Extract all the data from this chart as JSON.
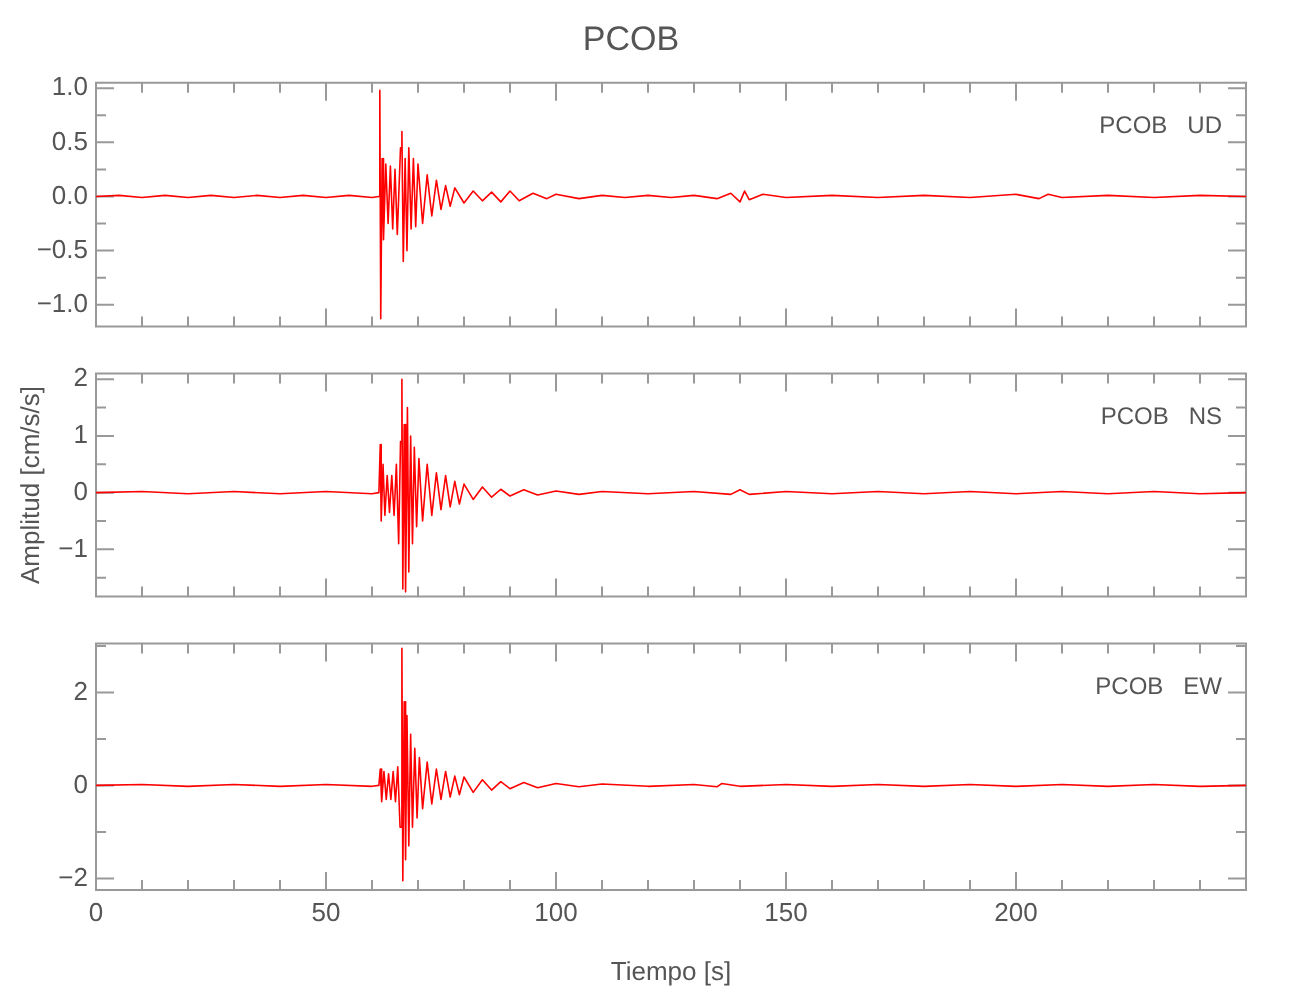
{
  "chart_data": [
    {
      "type": "line",
      "title": "PCOB",
      "annotations": [
        "PCOB   UD"
      ],
      "tick_labels": "y",
      "xlim": [
        0,
        250
      ],
      "ylim": [
        -1.2,
        1.05
      ],
      "xticks": [
        0,
        {
          "value": 10,
          "label": null
        },
        {
          "value": 20,
          "label": null
        },
        {
          "value": 30,
          "label": null
        },
        {
          "value": 40,
          "label": null
        },
        50,
        {
          "value": 60,
          "label": null
        },
        {
          "value": 70,
          "label": null
        },
        {
          "value": 80,
          "label": null
        },
        {
          "value": 90,
          "label": null
        },
        100,
        {
          "value": 110,
          "label": null
        },
        {
          "value": 120,
          "label": null
        },
        {
          "value": 130,
          "label": null
        },
        {
          "value": 140,
          "label": null
        },
        150,
        {
          "value": 160,
          "label": null
        },
        {
          "value": 170,
          "label": null
        },
        {
          "value": 180,
          "label": null
        },
        {
          "value": 190,
          "label": null
        },
        200,
        {
          "value": 210,
          "label": null
        },
        {
          "value": 220,
          "label": null
        },
        {
          "value": 230,
          "label": null
        },
        {
          "value": 240,
          "label": null
        }
      ],
      "yticks": [
        {
          "value": 1,
          "label": "1.0"
        },
        {
          "value": 0.75,
          "label": null
        },
        {
          "value": 0.5,
          "label": "0.5"
        },
        {
          "value": 0.25,
          "label": null
        },
        {
          "value": 0,
          "label": "0.0"
        },
        {
          "value": -0.25,
          "label": null
        },
        {
          "value": -0.5,
          "label": "−0.5"
        },
        {
          "value": -0.75,
          "label": null
        },
        {
          "value": -1,
          "label": "−1.0"
        }
      ],
      "series": [
        {
          "color": "#ff0000",
          "x": [
            0,
            5,
            10,
            15,
            20,
            25,
            30,
            35,
            40,
            45,
            50,
            55,
            60,
            61.5,
            61.7,
            61.9,
            62.2,
            62.5,
            63,
            63.5,
            64,
            64.5,
            65,
            65.5,
            66.2,
            66.5,
            66.8,
            67.2,
            67.6,
            68,
            68.5,
            69,
            69.5,
            70,
            71,
            72,
            73,
            74,
            75,
            76,
            77,
            78,
            80,
            82,
            84,
            86,
            88,
            90,
            92,
            95,
            98,
            100,
            105,
            110,
            115,
            120,
            125,
            130,
            135,
            138,
            140,
            141,
            142,
            145,
            150,
            160,
            170,
            180,
            190,
            200,
            205,
            207,
            210,
            220,
            230,
            240,
            250
          ],
          "values": [
            0,
            0.01,
            -0.01,
            0.01,
            -0.01,
            0.01,
            -0.01,
            0.01,
            -0.01,
            0.01,
            -0.01,
            0.01,
            -0.01,
            0,
            0.98,
            -1.13,
            0.35,
            -0.4,
            0.3,
            -0.25,
            0.28,
            -0.3,
            0.25,
            -0.35,
            0.45,
            0.6,
            -0.6,
            0.35,
            -0.5,
            0.45,
            -0.3,
            0.35,
            -0.28,
            0.3,
            -0.25,
            0.2,
            -0.18,
            0.15,
            -0.12,
            0.1,
            -0.09,
            0.08,
            -0.06,
            0.05,
            -0.04,
            0.04,
            -0.05,
            0.05,
            -0.04,
            0.03,
            -0.02,
            0.02,
            -0.02,
            0.01,
            -0.01,
            0.01,
            -0.01,
            0.01,
            -0.02,
            0.03,
            -0.05,
            0.05,
            -0.03,
            0.02,
            -0.01,
            0.01,
            -0.01,
            0.01,
            -0.01,
            0.02,
            -0.02,
            0.02,
            -0.01,
            0.01,
            -0.01,
            0.01,
            0
          ]
        }
      ]
    },
    {
      "type": "line",
      "ylabel": "Amplitud [cm/s/s]",
      "annotations": [
        "PCOB   NS"
      ],
      "tick_labels": "y",
      "xlim": [
        0,
        250
      ],
      "ylim": [
        -1.83,
        2.1
      ],
      "xticks": [
        0,
        {
          "value": 10,
          "label": null
        },
        {
          "value": 20,
          "label": null
        },
        {
          "value": 30,
          "label": null
        },
        {
          "value": 40,
          "label": null
        },
        50,
        {
          "value": 60,
          "label": null
        },
        {
          "value": 70,
          "label": null
        },
        {
          "value": 80,
          "label": null
        },
        {
          "value": 90,
          "label": null
        },
        100,
        {
          "value": 110,
          "label": null
        },
        {
          "value": 120,
          "label": null
        },
        {
          "value": 130,
          "label": null
        },
        {
          "value": 140,
          "label": null
        },
        150,
        {
          "value": 160,
          "label": null
        },
        {
          "value": 170,
          "label": null
        },
        {
          "value": 180,
          "label": null
        },
        {
          "value": 190,
          "label": null
        },
        200,
        {
          "value": 210,
          "label": null
        },
        {
          "value": 220,
          "label": null
        },
        {
          "value": 230,
          "label": null
        },
        {
          "value": 240,
          "label": null
        }
      ],
      "yticks": [
        2,
        {
          "value": 1.5,
          "label": null
        },
        1,
        {
          "value": 0.5,
          "label": null
        },
        0,
        {
          "value": -0.5,
          "label": null
        },
        {
          "value": -1,
          "label": "−1"
        },
        {
          "value": -1.5,
          "label": null
        }
      ],
      "series": [
        {
          "color": "#ff0000",
          "x": [
            0,
            10,
            20,
            30,
            40,
            50,
            60,
            61.5,
            61.8,
            62,
            62.4,
            62.8,
            63.3,
            63.8,
            64.3,
            64.8,
            65.3,
            65.8,
            66.2,
            66.5,
            66.7,
            67,
            67.3,
            67.7,
            68,
            68.4,
            68.8,
            69.2,
            69.7,
            70.2,
            71,
            72,
            73,
            74,
            75,
            76,
            77,
            78,
            79,
            80,
            82,
            84,
            86,
            88,
            90,
            93,
            96,
            100,
            105,
            110,
            120,
            130,
            138,
            140,
            142,
            150,
            160,
            170,
            180,
            190,
            200,
            210,
            220,
            230,
            240,
            250
          ],
          "values": [
            0,
            0.02,
            -0.02,
            0.02,
            -0.02,
            0.02,
            -0.02,
            0,
            0.85,
            -0.5,
            0.5,
            -0.4,
            0.3,
            -0.35,
            0.3,
            -0.4,
            0.5,
            -0.9,
            0.9,
            2.0,
            -1.7,
            1.2,
            -1.75,
            1.5,
            -1.4,
            1.0,
            -0.9,
            0.8,
            -0.6,
            0.6,
            -0.5,
            0.5,
            -0.4,
            0.35,
            -0.3,
            0.3,
            -0.25,
            0.2,
            -0.2,
            0.15,
            -0.12,
            0.1,
            -0.08,
            0.06,
            -0.06,
            0.05,
            -0.04,
            0.03,
            -0.03,
            0.02,
            -0.02,
            0.02,
            -0.03,
            0.05,
            -0.03,
            0.02,
            -0.02,
            0.02,
            -0.02,
            0.02,
            -0.02,
            0.02,
            -0.02,
            0.02,
            -0.02,
            0
          ]
        }
      ]
    },
    {
      "type": "line",
      "xlabel": "Tiempo [s]",
      "annotations": [
        "PCOB   EW"
      ],
      "xlim": [
        0,
        250
      ],
      "ylim": [
        -2.25,
        3.05
      ],
      "xticks": [
        0,
        {
          "value": 10,
          "label": null
        },
        {
          "value": 20,
          "label": null
        },
        {
          "value": 30,
          "label": null
        },
        {
          "value": 40,
          "label": null
        },
        50,
        {
          "value": 60,
          "label": null
        },
        {
          "value": 70,
          "label": null
        },
        {
          "value": 80,
          "label": null
        },
        {
          "value": 90,
          "label": null
        },
        100,
        {
          "value": 110,
          "label": null
        },
        {
          "value": 120,
          "label": null
        },
        {
          "value": 130,
          "label": null
        },
        {
          "value": 140,
          "label": null
        },
        150,
        {
          "value": 160,
          "label": null
        },
        {
          "value": 170,
          "label": null
        },
        {
          "value": 180,
          "label": null
        },
        {
          "value": 190,
          "label": null
        },
        200,
        {
          "value": 210,
          "label": null
        },
        {
          "value": 220,
          "label": null
        },
        {
          "value": 230,
          "label": null
        },
        {
          "value": 240,
          "label": null
        }
      ],
      "yticks": [
        {
          "value": 3,
          "label": null
        },
        2,
        {
          "value": 1,
          "label": null
        },
        0,
        {
          "value": -1,
          "label": null
        },
        {
          "value": -2,
          "label": "−2"
        }
      ],
      "series": [
        {
          "color": "#ff0000",
          "x": [
            0,
            10,
            20,
            30,
            40,
            50,
            60,
            61.5,
            61.8,
            62.1,
            62.6,
            63.1,
            63.6,
            64.1,
            64.6,
            65.1,
            65.6,
            66.1,
            66.5,
            66.7,
            67,
            67.3,
            67.6,
            68,
            68.4,
            68.8,
            69.3,
            69.8,
            70.3,
            71,
            72,
            73,
            74,
            75,
            76,
            77,
            78,
            79,
            80,
            82,
            84,
            86,
            88,
            90,
            93,
            96,
            100,
            105,
            110,
            120,
            130,
            135,
            136,
            140,
            150,
            160,
            170,
            180,
            190,
            200,
            210,
            220,
            230,
            240,
            250
          ],
          "values": [
            0,
            0.02,
            -0.02,
            0.02,
            -0.02,
            0.02,
            -0.02,
            0,
            0.35,
            -0.35,
            0.3,
            -0.3,
            0.25,
            -0.3,
            0.3,
            -0.35,
            0.4,
            -0.9,
            2.95,
            -2.05,
            1.8,
            -1.6,
            1.5,
            -1.3,
            1.1,
            -0.9,
            0.8,
            -0.7,
            0.6,
            -0.5,
            0.5,
            -0.4,
            0.35,
            -0.3,
            0.3,
            -0.25,
            0.2,
            -0.2,
            0.18,
            -0.15,
            0.12,
            -0.1,
            0.08,
            -0.07,
            0.06,
            -0.05,
            0.04,
            -0.03,
            0.03,
            -0.02,
            0.02,
            -0.03,
            0.04,
            -0.02,
            0.02,
            -0.02,
            0.02,
            -0.02,
            0.02,
            -0.02,
            0.02,
            -0.02,
            0.02,
            -0.02,
            0
          ]
        }
      ]
    }
  ]
}
